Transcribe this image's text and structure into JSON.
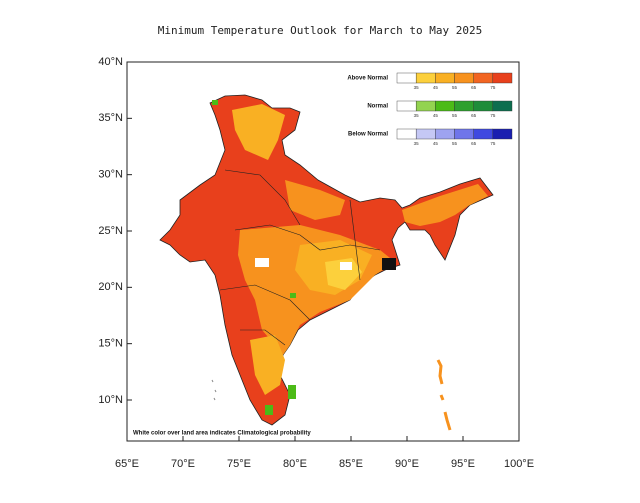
{
  "title": "Minimum Temperature Outlook for March to May 2025",
  "x_axis": {
    "ticks": [
      {
        "value": 65,
        "label": "65°E"
      },
      {
        "value": 70,
        "label": "70°E"
      },
      {
        "value": 75,
        "label": "75°E"
      },
      {
        "value": 80,
        "label": "80°E"
      },
      {
        "value": 85,
        "label": "85°E"
      },
      {
        "value": 90,
        "label": "90°E"
      },
      {
        "value": 95,
        "label": "95°E"
      },
      {
        "value": 100,
        "label": "100°E"
      }
    ]
  },
  "y_axis": {
    "ticks": [
      {
        "value": 10,
        "label": "10°N"
      },
      {
        "value": 15,
        "label": "15°N"
      },
      {
        "value": 20,
        "label": "20°N"
      },
      {
        "value": 25,
        "label": "25°N"
      },
      {
        "value": 30,
        "label": "30°N"
      },
      {
        "value": 35,
        "label": "35°N"
      },
      {
        "value": 40,
        "label": "40°N"
      }
    ]
  },
  "legend": [
    {
      "label": "Above Normal",
      "colors": [
        "#ffffff",
        "#fcd03c",
        "#f9b023",
        "#f7921e",
        "#f26522",
        "#e8401c"
      ],
      "ticks": [
        35,
        45,
        55,
        65,
        75
      ]
    },
    {
      "label": "Normal",
      "colors": [
        "#ffffff",
        "#93d350",
        "#4cbb17",
        "#2ea02e",
        "#1e8c3a",
        "#0d6e4f"
      ],
      "ticks": [
        35,
        45,
        55,
        65,
        75
      ]
    },
    {
      "label": "Below Normal",
      "colors": [
        "#ffffff",
        "#c5c8f5",
        "#9ea3f0",
        "#6f75ea",
        "#3f49e0",
        "#1a1fb0"
      ],
      "ticks": [
        35,
        45,
        55,
        65,
        75
      ]
    }
  ],
  "footnote": "White color over land area indicates Climatological probability"
}
